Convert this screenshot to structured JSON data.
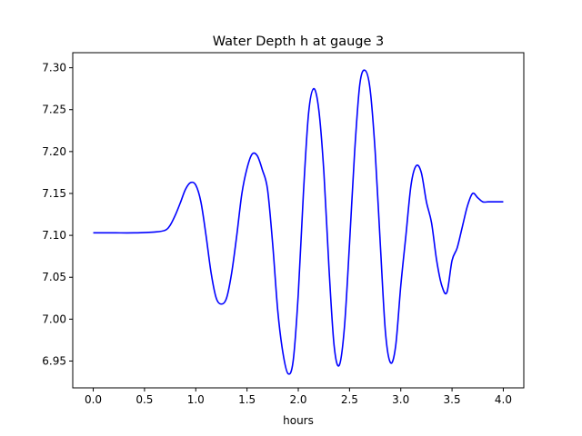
{
  "chart_data": {
    "type": "line",
    "title": "Water Depth h at gauge 3",
    "xlabel": "hours",
    "ylabel": "",
    "xlim": [
      -0.2,
      4.2
    ],
    "ylim": [
      6.918,
      7.318
    ],
    "xticks": [
      0.0,
      0.5,
      1.0,
      1.5,
      2.0,
      2.5,
      3.0,
      3.5,
      4.0
    ],
    "xtick_labels": [
      "0.0",
      "0.5",
      "1.0",
      "1.5",
      "2.0",
      "2.5",
      "3.0",
      "3.5",
      "4.0"
    ],
    "yticks": [
      6.95,
      7.0,
      7.05,
      7.1,
      7.15,
      7.2,
      7.25,
      7.3
    ],
    "ytick_labels": [
      "6.95",
      "7.00",
      "7.05",
      "7.10",
      "7.15",
      "7.20",
      "7.25",
      "7.30"
    ],
    "grid": false,
    "series": [
      {
        "color": "#0000ff",
        "x": [
          0.0,
          0.2,
          0.4,
          0.6,
          0.7,
          0.75,
          0.8,
          0.85,
          0.9,
          0.95,
          1.0,
          1.05,
          1.1,
          1.15,
          1.2,
          1.25,
          1.3,
          1.35,
          1.4,
          1.45,
          1.5,
          1.55,
          1.6,
          1.65,
          1.7,
          1.75,
          1.8,
          1.85,
          1.9,
          1.95,
          2.0,
          2.05,
          2.1,
          2.15,
          2.2,
          2.25,
          2.3,
          2.35,
          2.4,
          2.45,
          2.5,
          2.55,
          2.6,
          2.65,
          2.7,
          2.75,
          2.8,
          2.85,
          2.9,
          2.95,
          3.0,
          3.05,
          3.1,
          3.15,
          3.2,
          3.25,
          3.3,
          3.35,
          3.4,
          3.45,
          3.5,
          3.55,
          3.6,
          3.65,
          3.7,
          3.75,
          3.8,
          3.85,
          3.9,
          3.95,
          4.0
        ],
        "y": [
          7.103,
          7.103,
          7.103,
          7.104,
          7.106,
          7.112,
          7.124,
          7.139,
          7.155,
          7.163,
          7.16,
          7.14,
          7.1,
          7.055,
          7.025,
          7.018,
          7.025,
          7.055,
          7.1,
          7.15,
          7.18,
          7.197,
          7.195,
          7.178,
          7.155,
          7.09,
          7.01,
          6.96,
          6.935,
          6.95,
          7.03,
          7.15,
          7.245,
          7.275,
          7.25,
          7.175,
          7.06,
          6.968,
          6.945,
          6.99,
          7.09,
          7.2,
          7.28,
          7.297,
          7.275,
          7.2,
          7.09,
          6.985,
          6.948,
          6.968,
          7.04,
          7.1,
          7.16,
          7.183,
          7.175,
          7.14,
          7.115,
          7.07,
          7.04,
          7.032,
          7.07,
          7.085,
          7.11,
          7.135,
          7.15,
          7.145,
          7.14,
          7.14,
          7.14,
          7.14,
          7.14
        ]
      }
    ]
  }
}
